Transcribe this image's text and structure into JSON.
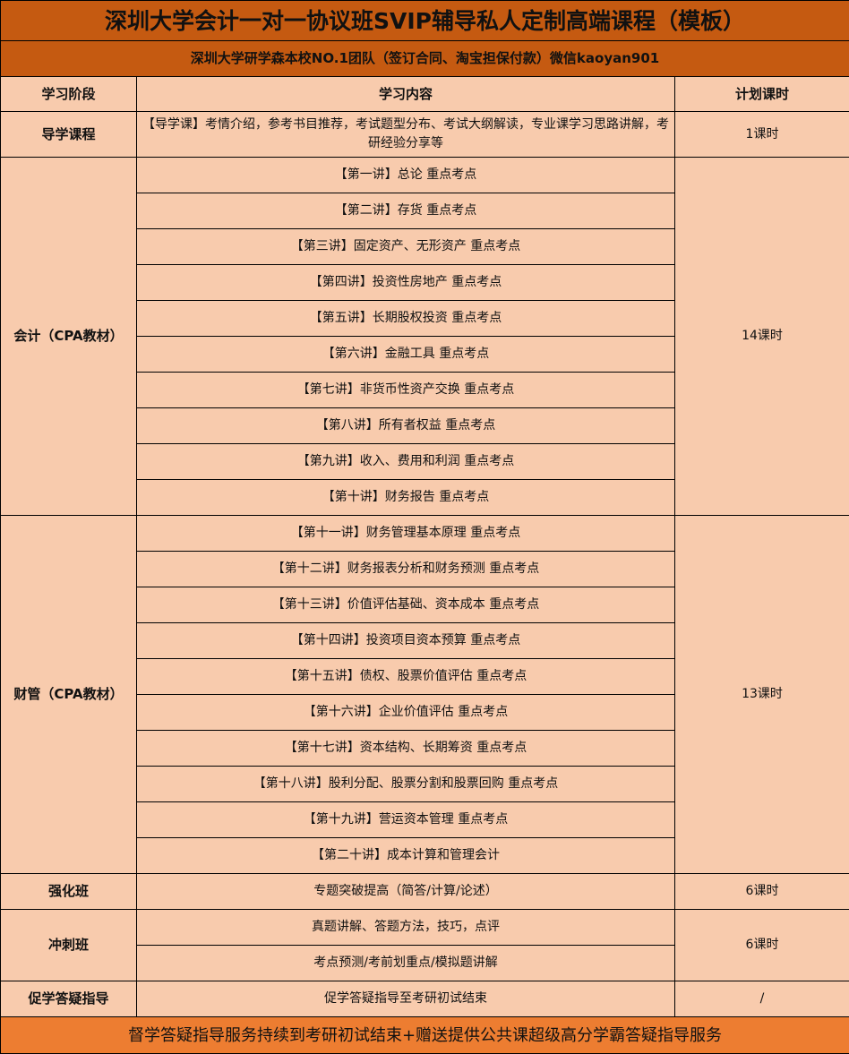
{
  "title": "深圳大学会计一对一协议班SVIP辅导私人定制高端课程（模板）",
  "subtitle": "深圳大学研学森本校NO.1团队（签订合同、淘宝担保付款）微信kaoyan901",
  "headers": {
    "stage": "学习阶段",
    "content": "学习内容",
    "hours": "计划课时"
  },
  "sections": [
    {
      "stage": "导学课程",
      "hours": "1课时",
      "items": [
        "【导学课】考情介绍，参考书目推荐，考试题型分布、考试大纲解读，专业课学习思路讲解，考研经验分享等"
      ]
    },
    {
      "stage": "会计（CPA教材）",
      "hours": "14课时",
      "items": [
        "【第一讲】总论  重点考点",
        "【第二讲】存货 重点考点",
        "【第三讲】固定资产、无形资产 重点考点",
        "【第四讲】投资性房地产 重点考点",
        "【第五讲】长期股权投资 重点考点",
        "【第六讲】金融工具 重点考点",
        "【第七讲】非货币性资产交换  重点考点",
        "【第八讲】所有者权益  重点考点",
        "【第九讲】收入、费用和利润  重点考点",
        "【第十讲】财务报告  重点考点"
      ]
    },
    {
      "stage": "财管（CPA教材）",
      "hours": "13课时",
      "items": [
        "【第十一讲】财务管理基本原理  重点考点",
        "【第十二讲】财务报表分析和财务预测  重点考点",
        "【第十三讲】价值评估基础、资本成本  重点考点",
        "【第十四讲】投资项目资本预算  重点考点",
        "【第十五讲】债权、股票价值评估  重点考点",
        "【第十六讲】企业价值评估  重点考点",
        "【第十七讲】资本结构、长期筹资  重点考点",
        "【第十八讲】股利分配、股票分割和股票回购  重点考点",
        "【第十九讲】营运资本管理  重点考点",
        "【第二十讲】成本计算和管理会计"
      ]
    },
    {
      "stage": "强化班",
      "hours": "6课时",
      "items": [
        "专题突破提高（简答/计算/论述）"
      ]
    },
    {
      "stage": "冲刺班",
      "hours": "6课时",
      "items": [
        "真题讲解、答题方法，技巧，点评",
        "考点预测/考前划重点/模拟题讲解"
      ]
    },
    {
      "stage": "促学答疑指导",
      "hours": "/",
      "items": [
        "促学答疑指导至考研初试结束"
      ]
    }
  ],
  "footer": "督学答疑指导服务持续到考研初试结束+赠送提供公共课超级高分学霸答疑指导服务",
  "colors": {
    "title_bg": "#C55A11",
    "body_bg": "#F8CBAD",
    "footer_bg": "#ED7D31"
  }
}
